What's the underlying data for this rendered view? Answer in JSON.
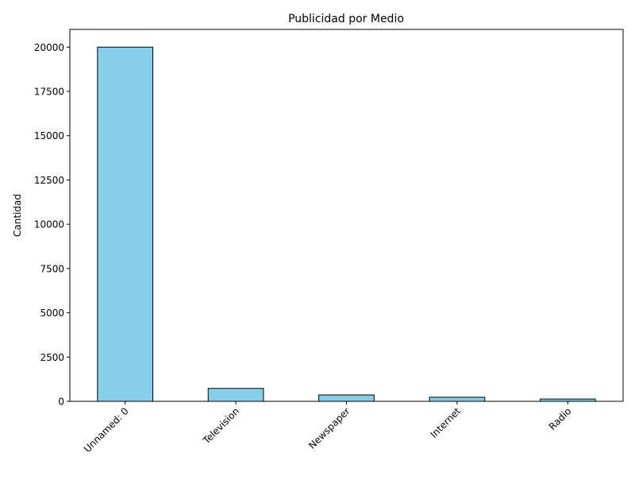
{
  "chart_data": {
    "type": "bar",
    "title": "Publicidad por Medio",
    "xlabel": "",
    "ylabel": "Cantidad",
    "categories": [
      "Unnamed: 0",
      "Television",
      "Newspaper",
      "Internet",
      "Radio"
    ],
    "values": [
      20000,
      730,
      360,
      230,
      130
    ],
    "ylim": [
      0,
      21000
    ],
    "yticks": [
      0,
      2500,
      5000,
      7500,
      10000,
      12500,
      15000,
      17500,
      20000
    ],
    "grid": false,
    "legend": "none",
    "bar_color": "#87ceeb",
    "edge_color": "#000000",
    "xtick_rotation_deg": 45
  }
}
